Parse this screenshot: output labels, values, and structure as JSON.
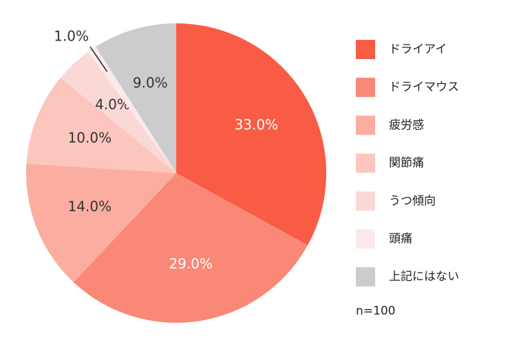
{
  "chart_data": {
    "type": "pie",
    "categories": [
      "ドライアイ",
      "ドライマウス",
      "疲労感",
      "関節痛",
      "うつ傾向",
      "頭痛",
      "上記にはない"
    ],
    "values": [
      33,
      29,
      14,
      10,
      4,
      1,
      9
    ],
    "value_labels": [
      "33.0%",
      "29.0%",
      "14.0%",
      "10.0%",
      "4.0%",
      "1.0%",
      "9.0%"
    ],
    "colors": [
      "#f85c45",
      "#f98877",
      "#fbaea0",
      "#fcc6be",
      "#fad8d6",
      "#fbeaea",
      "#cccccc"
    ],
    "note": "n=100",
    "legend": "right"
  }
}
